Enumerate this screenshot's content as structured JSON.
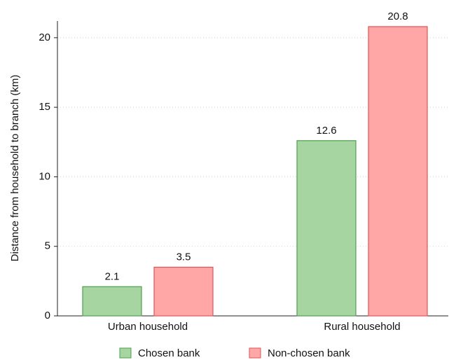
{
  "chart_data": {
    "type": "bar",
    "ylabel": "Distance from household to branch (km)",
    "categories": [
      "Urban household",
      "Rural household"
    ],
    "series": [
      {
        "name": "Chosen bank",
        "color": "#a6d5a1",
        "edge": "#4f9f4f",
        "values": [
          2.1,
          12.6
        ]
      },
      {
        "name": "Non-chosen bank",
        "color": "#ffa6a6",
        "edge": "#e05656",
        "values": [
          3.5,
          20.8
        ]
      }
    ],
    "ylim": [
      0,
      21
    ],
    "yticks": [
      0,
      5,
      10,
      15,
      20
    ],
    "grid": true,
    "legend": "bottom"
  }
}
